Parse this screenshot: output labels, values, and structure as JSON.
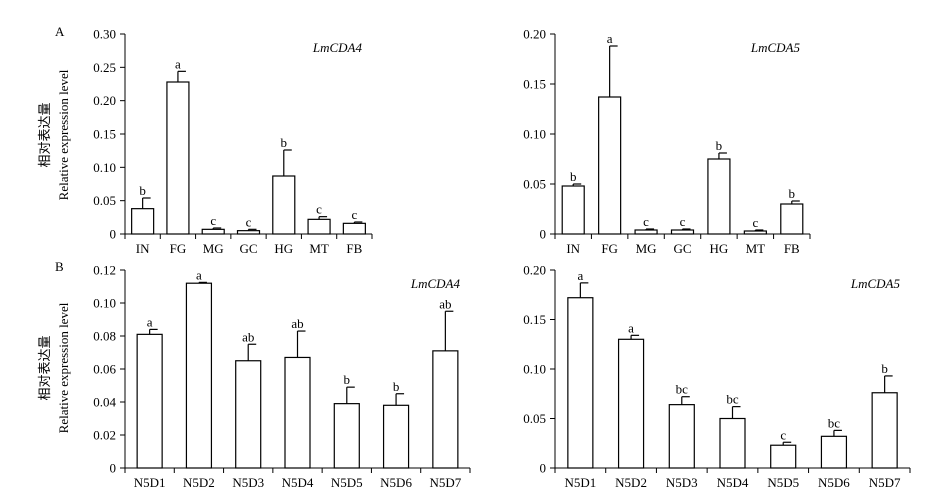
{
  "figure": {
    "ylabel_cn": "相对表达量",
    "ylabel_en": "Relative expression level",
    "panel_labels": [
      "A",
      "B"
    ]
  },
  "chart_data": [
    {
      "type": "bar",
      "title": "LmCDA4",
      "categories": [
        "IN",
        "FG",
        "MG",
        "GC",
        "HG",
        "MT",
        "FB"
      ],
      "values": [
        0.038,
        0.228,
        0.007,
        0.005,
        0.087,
        0.022,
        0.016
      ],
      "errors": [
        0.016,
        0.016,
        0.002,
        0.002,
        0.039,
        0.004,
        0.002
      ],
      "labels": [
        "b",
        "a",
        "c",
        "c",
        "b",
        "c",
        "c"
      ],
      "ylim": [
        0,
        0.3
      ],
      "yticks": [
        0,
        0.05,
        0.1,
        0.15,
        0.2,
        0.25,
        0.3
      ],
      "ytick_labels": [
        "0",
        "0.05",
        "0.10",
        "0.15",
        "0.20",
        "0.25",
        "0.30"
      ]
    },
    {
      "type": "bar",
      "title": "LmCDA5",
      "categories": [
        "IN",
        "FG",
        "MG",
        "GC",
        "HG",
        "MT",
        "FB"
      ],
      "values": [
        0.048,
        0.137,
        0.004,
        0.004,
        0.075,
        0.003,
        0.03
      ],
      "errors": [
        0.002,
        0.051,
        0.001,
        0.001,
        0.006,
        0.001,
        0.003
      ],
      "labels": [
        "b",
        "a",
        "c",
        "c",
        "b",
        "c",
        "b"
      ],
      "ylim": [
        0,
        0.2
      ],
      "yticks": [
        0,
        0.05,
        0.1,
        0.15,
        0.2
      ],
      "ytick_labels": [
        "0",
        "0.05",
        "0.10",
        "0.15",
        "0.20"
      ]
    },
    {
      "type": "bar",
      "title": "LmCDA4",
      "categories": [
        "N5D1",
        "N5D2",
        "N5D3",
        "N5D4",
        "N5D5",
        "N5D6",
        "N5D7"
      ],
      "values": [
        0.081,
        0.112,
        0.065,
        0.067,
        0.039,
        0.038,
        0.071
      ],
      "errors": [
        0.003,
        0.0005,
        0.01,
        0.016,
        0.01,
        0.007,
        0.024
      ],
      "labels": [
        "a",
        "a",
        "ab",
        "ab",
        "b",
        "b",
        "ab"
      ],
      "ylim": [
        0,
        0.12
      ],
      "yticks": [
        0,
        0.02,
        0.04,
        0.06,
        0.08,
        0.1,
        0.12
      ],
      "ytick_labels": [
        "0",
        "0.02",
        "0.04",
        "0.06",
        "0.08",
        "0.10",
        "0.12"
      ]
    },
    {
      "type": "bar",
      "title": "LmCDA5",
      "categories": [
        "N5D1",
        "N5D2",
        "N5D3",
        "N5D4",
        "N5D5",
        "N5D6",
        "N5D7"
      ],
      "values": [
        0.172,
        0.13,
        0.064,
        0.05,
        0.023,
        0.032,
        0.076
      ],
      "errors": [
        0.015,
        0.004,
        0.008,
        0.012,
        0.003,
        0.006,
        0.017
      ],
      "labels": [
        "a",
        "a",
        "bc",
        "bc",
        "c",
        "bc",
        "b"
      ],
      "ylim": [
        0,
        0.2
      ],
      "yticks": [
        0,
        0.05,
        0.1,
        0.15,
        0.2
      ],
      "ytick_labels": [
        "0",
        "0.05",
        "0.10",
        "0.15",
        "0.20"
      ]
    }
  ]
}
